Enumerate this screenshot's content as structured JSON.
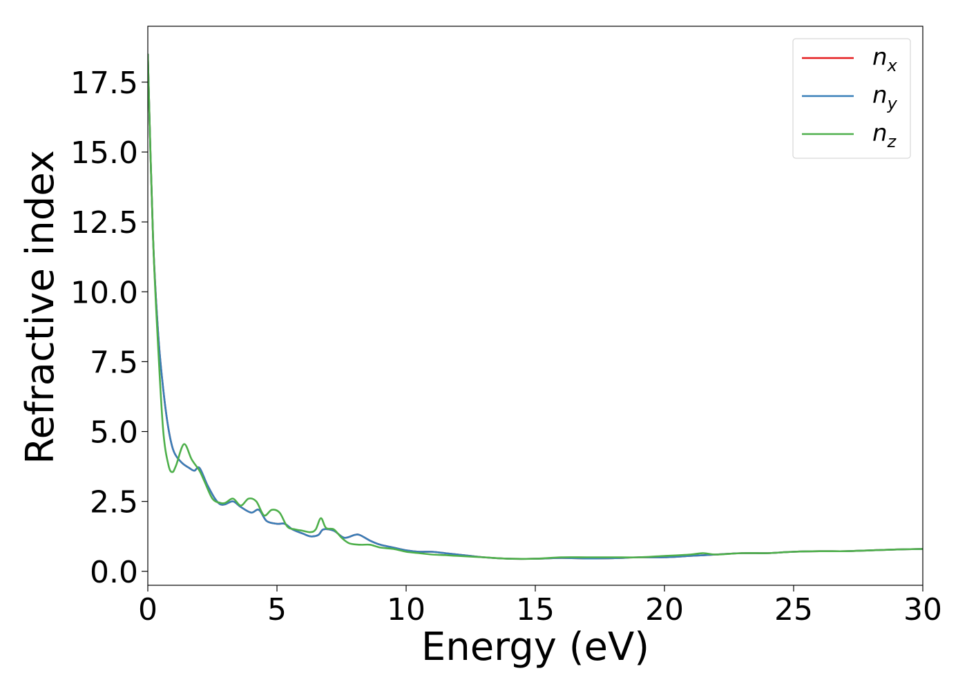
{
  "chart_data": {
    "type": "line",
    "title": "",
    "xlabel": "Energy (eV)",
    "ylabel": "Refractive index",
    "xlim": [
      0,
      30
    ],
    "ylim": [
      -0.5,
      19.5
    ],
    "xticks": [
      0,
      5,
      10,
      15,
      20,
      25,
      30
    ],
    "xtick_labels": [
      "0",
      "5",
      "10",
      "15",
      "20",
      "25",
      "30"
    ],
    "yticks": [
      0,
      2.5,
      5,
      7.5,
      10,
      12.5,
      15,
      17.5
    ],
    "ytick_labels": [
      "0.0",
      "2.5",
      "5.0",
      "7.5",
      "10.0",
      "12.5",
      "15.0",
      "17.5"
    ],
    "grid": false,
    "legend_position": "top-right",
    "series": [
      {
        "name": "n_x",
        "label_base": "n",
        "label_sub": "x",
        "color": "#e41a1c",
        "x": [
          0,
          0.2,
          0.4,
          0.6,
          0.8,
          1.0,
          1.3,
          1.6,
          1.8,
          2.0,
          2.3,
          2.6,
          2.8,
          3.0,
          3.3,
          3.6,
          4.0,
          4.3,
          4.6,
          5.0,
          5.3,
          5.6,
          6.0,
          6.3,
          6.6,
          6.8,
          7.2,
          7.6,
          8.0,
          8.2,
          8.6,
          9.0,
          9.5,
          10.0,
          10.5,
          11.0,
          11.5,
          12.0,
          12.5,
          13.0,
          14.0,
          15.0,
          16.0,
          17.0,
          18.0,
          19.0,
          20.0,
          21.0,
          22.0,
          23.0,
          24.0,
          25.0,
          26.0,
          27.0,
          28.0,
          29.0,
          30.0
        ],
        "y": [
          18.5,
          12.0,
          8.5,
          6.5,
          5.1,
          4.3,
          3.9,
          3.7,
          3.6,
          3.7,
          3.1,
          2.6,
          2.4,
          2.4,
          2.5,
          2.3,
          2.1,
          2.2,
          1.8,
          1.7,
          1.7,
          1.5,
          1.35,
          1.25,
          1.3,
          1.5,
          1.45,
          1.2,
          1.3,
          1.3,
          1.1,
          0.95,
          0.85,
          0.75,
          0.7,
          0.7,
          0.65,
          0.6,
          0.55,
          0.5,
          0.45,
          0.45,
          0.48,
          0.46,
          0.47,
          0.5,
          0.5,
          0.55,
          0.6,
          0.65,
          0.65,
          0.7,
          0.72,
          0.72,
          0.75,
          0.78,
          0.8
        ]
      },
      {
        "name": "n_y",
        "label_base": "n",
        "label_sub": "y",
        "color": "#377eb8",
        "x": [
          0,
          0.2,
          0.4,
          0.6,
          0.8,
          1.0,
          1.3,
          1.6,
          1.8,
          2.0,
          2.3,
          2.6,
          2.8,
          3.0,
          3.3,
          3.6,
          4.0,
          4.3,
          4.6,
          5.0,
          5.3,
          5.6,
          6.0,
          6.3,
          6.6,
          6.8,
          7.2,
          7.6,
          8.0,
          8.2,
          8.6,
          9.0,
          9.5,
          10.0,
          10.5,
          11.0,
          11.5,
          12.0,
          12.5,
          13.0,
          14.0,
          15.0,
          16.0,
          17.0,
          18.0,
          19.0,
          20.0,
          21.0,
          22.0,
          23.0,
          24.0,
          25.0,
          26.0,
          27.0,
          28.0,
          29.0,
          30.0
        ],
        "y": [
          18.5,
          12.0,
          8.5,
          6.5,
          5.1,
          4.3,
          3.9,
          3.7,
          3.6,
          3.7,
          3.1,
          2.6,
          2.4,
          2.4,
          2.5,
          2.3,
          2.1,
          2.2,
          1.8,
          1.7,
          1.7,
          1.5,
          1.35,
          1.25,
          1.3,
          1.5,
          1.45,
          1.2,
          1.3,
          1.3,
          1.1,
          0.95,
          0.85,
          0.75,
          0.7,
          0.7,
          0.65,
          0.6,
          0.55,
          0.5,
          0.45,
          0.45,
          0.48,
          0.46,
          0.47,
          0.5,
          0.5,
          0.55,
          0.6,
          0.65,
          0.65,
          0.7,
          0.72,
          0.72,
          0.75,
          0.78,
          0.8
        ]
      },
      {
        "name": "n_z",
        "label_base": "n",
        "label_sub": "z",
        "color": "#4daf4a",
        "x": [
          0,
          0.2,
          0.4,
          0.6,
          0.8,
          0.95,
          1.1,
          1.4,
          1.7,
          2.0,
          2.2,
          2.5,
          2.8,
          3.0,
          3.3,
          3.6,
          3.9,
          4.2,
          4.5,
          4.8,
          5.1,
          5.4,
          5.7,
          6.0,
          6.3,
          6.5,
          6.7,
          6.9,
          7.2,
          7.5,
          7.8,
          8.2,
          8.6,
          9.0,
          9.5,
          10.0,
          10.5,
          11.0,
          11.5,
          12.0,
          13.0,
          14.0,
          15.0,
          16.0,
          17.0,
          18.0,
          19.0,
          20.0,
          21.0,
          21.5,
          22.0,
          23.0,
          24.0,
          25.0,
          26.0,
          27.0,
          28.0,
          29.0,
          30.0
        ],
        "y": [
          18.5,
          12.0,
          8.0,
          5.0,
          3.8,
          3.55,
          3.8,
          4.55,
          4.0,
          3.6,
          3.2,
          2.6,
          2.45,
          2.45,
          2.6,
          2.35,
          2.6,
          2.5,
          2.0,
          2.2,
          2.1,
          1.6,
          1.5,
          1.45,
          1.4,
          1.5,
          1.9,
          1.55,
          1.5,
          1.2,
          1.0,
          0.95,
          0.95,
          0.85,
          0.8,
          0.7,
          0.65,
          0.6,
          0.58,
          0.55,
          0.5,
          0.45,
          0.45,
          0.5,
          0.5,
          0.5,
          0.5,
          0.55,
          0.6,
          0.65,
          0.6,
          0.65,
          0.65,
          0.7,
          0.72,
          0.72,
          0.75,
          0.78,
          0.8
        ]
      }
    ]
  }
}
